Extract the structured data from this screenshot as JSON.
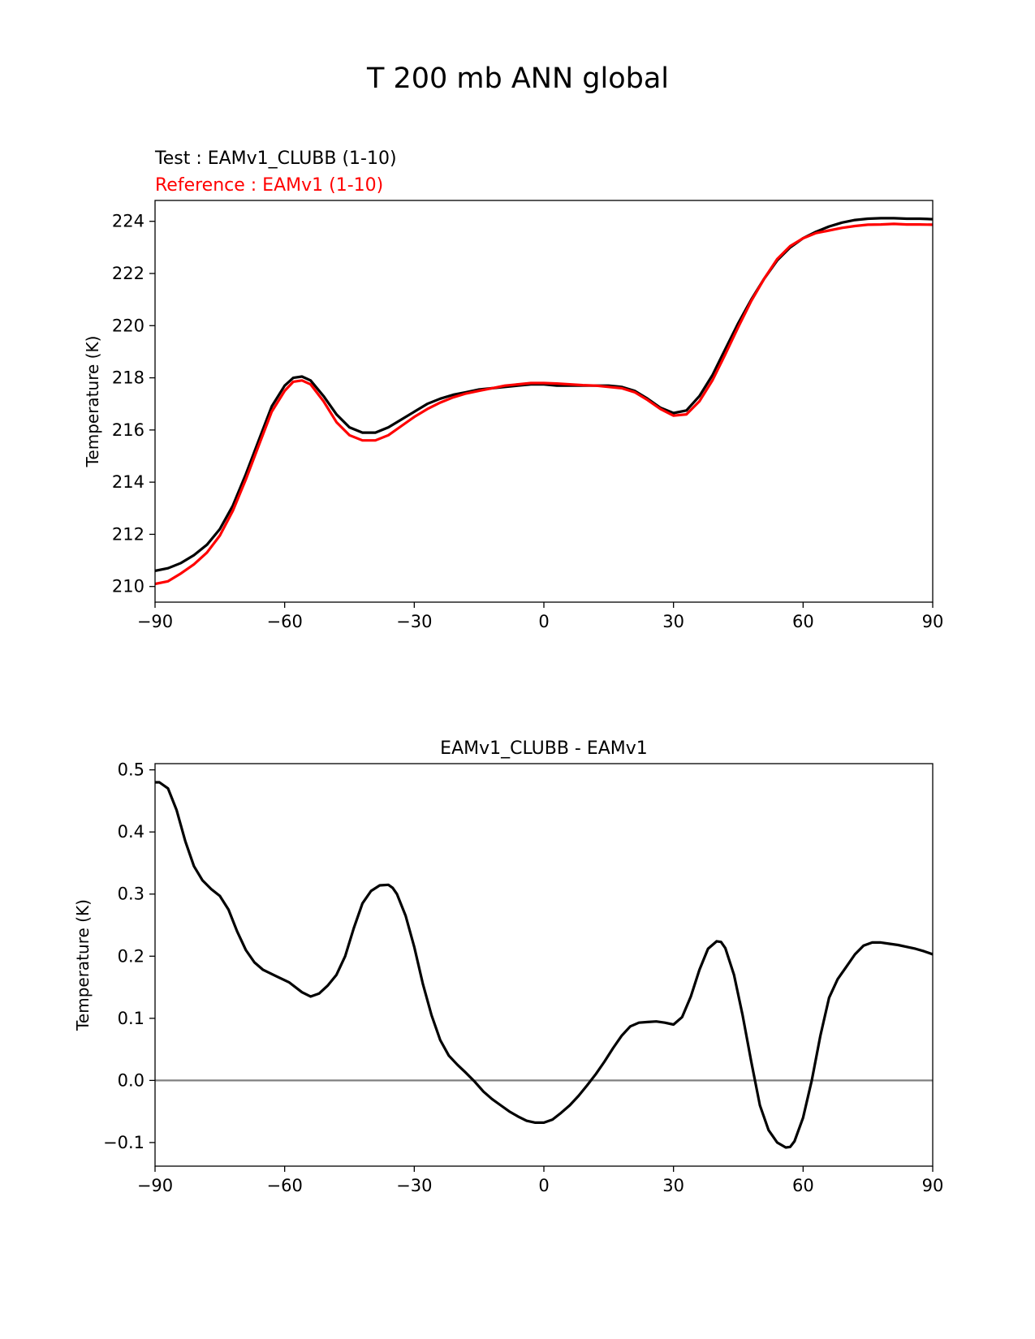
{
  "figure_title": "T 200 mb ANN global",
  "chart_data": [
    {
      "type": "line",
      "title_lines": [
        {
          "text": "Test : EAMv1_CLUBB (1-10)",
          "color": "#000000"
        },
        {
          "text": "Reference : EAMv1 (1-10)",
          "color": "#ff0000"
        }
      ],
      "xlabel": "",
      "ylabel": "Temperature (K)",
      "xlim": [
        -90,
        90
      ],
      "ylim": [
        209.4,
        224.8
      ],
      "xticks": [
        -90,
        -60,
        -30,
        0,
        30,
        60,
        90
      ],
      "xtick_labels": [
        "−90",
        "−60",
        "−30",
        "0",
        "30",
        "60",
        "90"
      ],
      "yticks": [
        210,
        212,
        214,
        216,
        218,
        220,
        222,
        224
      ],
      "ytick_labels": [
        "210",
        "212",
        "214",
        "216",
        "218",
        "220",
        "222",
        "224"
      ],
      "grid": false,
      "legend": "none",
      "series": [
        {
          "color": "#000000",
          "x": [
            -90,
            -87,
            -84,
            -81,
            -78,
            -75,
            -72,
            -69,
            -66,
            -63,
            -60,
            -58,
            -56,
            -54,
            -51,
            -48,
            -45,
            -42,
            -39,
            -36,
            -33,
            -30,
            -27,
            -24,
            -21,
            -18,
            -15,
            -12,
            -9,
            -6,
            -3,
            0,
            3,
            6,
            9,
            12,
            15,
            18,
            21,
            24,
            27,
            30,
            33,
            36,
            39,
            42,
            45,
            48,
            51,
            54,
            57,
            60,
            63,
            66,
            69,
            72,
            75,
            78,
            81,
            84,
            87,
            90
          ],
          "y": [
            210.6,
            210.7,
            210.9,
            211.2,
            211.6,
            212.2,
            213.1,
            214.3,
            215.6,
            216.9,
            217.7,
            218.0,
            218.05,
            217.9,
            217.3,
            216.6,
            216.1,
            215.9,
            215.9,
            216.1,
            216.4,
            216.7,
            217.0,
            217.2,
            217.35,
            217.45,
            217.55,
            217.6,
            217.65,
            217.7,
            217.75,
            217.75,
            217.7,
            217.7,
            217.7,
            217.7,
            217.7,
            217.65,
            217.5,
            217.2,
            216.85,
            216.65,
            216.75,
            217.3,
            218.1,
            219.1,
            220.1,
            221.0,
            221.8,
            222.5,
            223.0,
            223.35,
            223.6,
            223.8,
            223.95,
            224.05,
            224.1,
            224.12,
            224.12,
            224.1,
            224.1,
            224.08
          ]
        },
        {
          "color": "#ff0000",
          "x": [
            -90,
            -87,
            -84,
            -81,
            -78,
            -75,
            -72,
            -69,
            -66,
            -63,
            -60,
            -58,
            -56,
            -54,
            -51,
            -48,
            -45,
            -42,
            -39,
            -36,
            -33,
            -30,
            -27,
            -24,
            -21,
            -18,
            -15,
            -12,
            -9,
            -6,
            -3,
            0,
            3,
            6,
            9,
            12,
            15,
            18,
            21,
            24,
            27,
            30,
            33,
            36,
            39,
            42,
            45,
            48,
            51,
            54,
            57,
            60,
            63,
            66,
            69,
            72,
            75,
            78,
            81,
            84,
            87,
            90
          ],
          "y": [
            210.1,
            210.2,
            210.5,
            210.85,
            211.3,
            211.95,
            212.9,
            214.1,
            215.4,
            216.7,
            217.5,
            217.85,
            217.9,
            217.75,
            217.1,
            216.3,
            215.8,
            215.6,
            215.6,
            215.8,
            216.15,
            216.5,
            216.8,
            217.05,
            217.25,
            217.4,
            217.5,
            217.6,
            217.7,
            217.75,
            217.8,
            217.8,
            217.78,
            217.75,
            217.72,
            217.7,
            217.65,
            217.6,
            217.45,
            217.15,
            216.8,
            216.55,
            216.6,
            217.1,
            217.9,
            218.9,
            219.95,
            220.95,
            221.8,
            222.55,
            223.05,
            223.35,
            223.55,
            223.65,
            223.75,
            223.82,
            223.87,
            223.88,
            223.9,
            223.88,
            223.88,
            223.87
          ]
        }
      ]
    },
    {
      "type": "line",
      "title": "EAMv1_CLUBB - EAMv1",
      "xlabel": "",
      "ylabel": "Temperature (K)",
      "xlim": [
        -90,
        90
      ],
      "ylim": [
        -0.138,
        0.51
      ],
      "xticks": [
        -90,
        -60,
        -30,
        0,
        30,
        60,
        90
      ],
      "xtick_labels": [
        "−90",
        "−60",
        "−30",
        "0",
        "30",
        "60",
        "90"
      ],
      "yticks": [
        -0.1,
        0.0,
        0.1,
        0.2,
        0.3,
        0.4,
        0.5
      ],
      "ytick_labels": [
        "−0.1",
        "0.0",
        "0.1",
        "0.2",
        "0.3",
        "0.4",
        "0.5"
      ],
      "grid": false,
      "legend": "none",
      "zero_line": {
        "y": 0.0,
        "color": "#808080"
      },
      "series": [
        {
          "color": "#000000",
          "x": [
            -90,
            -89,
            -87,
            -85,
            -83,
            -81,
            -79,
            -77,
            -75,
            -73,
            -71,
            -69,
            -67,
            -65,
            -62,
            -59,
            -56,
            -54,
            -52,
            -50,
            -48,
            -46,
            -44,
            -42,
            -40,
            -38,
            -36,
            -35,
            -34,
            -32,
            -30,
            -28,
            -26,
            -24,
            -22,
            -20,
            -18,
            -16,
            -14,
            -12,
            -10,
            -8,
            -6,
            -4,
            -2,
            0,
            2,
            4,
            6,
            8,
            10,
            12,
            14,
            16,
            18,
            20,
            22,
            24,
            26,
            28,
            30,
            32,
            34,
            36,
            38,
            40,
            41,
            42,
            44,
            46,
            48,
            50,
            52,
            54,
            56,
            57,
            58,
            60,
            62,
            64,
            66,
            68,
            70,
            72,
            74,
            76,
            78,
            80,
            82,
            84,
            86,
            88,
            90
          ],
          "y": [
            0.48,
            0.48,
            0.47,
            0.435,
            0.385,
            0.345,
            0.322,
            0.308,
            0.297,
            0.275,
            0.24,
            0.21,
            0.19,
            0.178,
            0.168,
            0.158,
            0.142,
            0.135,
            0.14,
            0.153,
            0.17,
            0.2,
            0.245,
            0.285,
            0.305,
            0.314,
            0.315,
            0.31,
            0.3,
            0.265,
            0.215,
            0.155,
            0.105,
            0.065,
            0.04,
            0.025,
            0.012,
            -0.002,
            -0.018,
            -0.03,
            -0.04,
            -0.05,
            -0.058,
            -0.065,
            -0.068,
            -0.068,
            -0.063,
            -0.052,
            -0.04,
            -0.025,
            -0.008,
            0.01,
            0.03,
            0.052,
            0.072,
            0.087,
            0.093,
            0.094,
            0.095,
            0.093,
            0.09,
            0.102,
            0.135,
            0.178,
            0.212,
            0.224,
            0.223,
            0.213,
            0.17,
            0.105,
            0.03,
            -0.04,
            -0.08,
            -0.1,
            -0.108,
            -0.107,
            -0.098,
            -0.06,
            0.0,
            0.072,
            0.133,
            0.163,
            0.183,
            0.203,
            0.217,
            0.222,
            0.222,
            0.22,
            0.218,
            0.215,
            0.212,
            0.208,
            0.203
          ]
        }
      ]
    }
  ]
}
